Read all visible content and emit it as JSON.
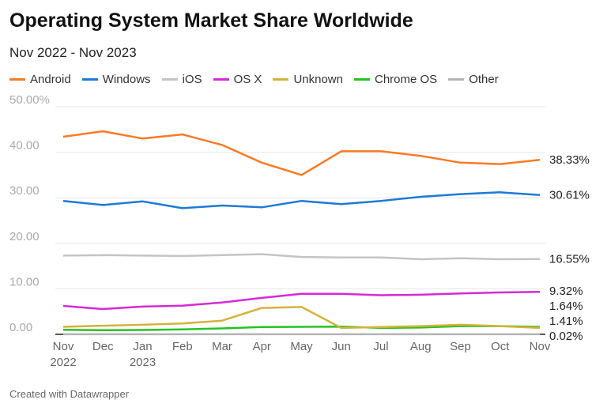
{
  "chart_data": {
    "type": "line",
    "title": "Operating System Market Share Worldwide",
    "subtitle": "Nov 2022 - Nov 2023",
    "categories": [
      "Nov",
      "Dec",
      "Jan",
      "Feb",
      "Mar",
      "Apr",
      "May",
      "Jun",
      "Jul",
      "Aug",
      "Sep",
      "Oct",
      "Nov"
    ],
    "category_years": {
      "0": "2022",
      "2": "2023"
    },
    "ylim": [
      0,
      50
    ],
    "yticks": [
      0,
      10,
      20,
      30,
      40,
      50
    ],
    "ytick_labels": [
      "0.00",
      "10.00",
      "20.00",
      "30.00",
      "40.00",
      "50.00%"
    ],
    "grid": true,
    "legend": "top",
    "series": [
      {
        "name": "Android",
        "color": "#fa7a25",
        "end_label": "38.33%",
        "values": [
          43.4,
          44.6,
          43.0,
          43.9,
          41.6,
          37.7,
          35.0,
          40.2,
          40.2,
          39.2,
          37.7,
          37.4,
          38.33
        ]
      },
      {
        "name": "Windows",
        "color": "#1d7ad6",
        "end_label": "30.61%",
        "values": [
          29.3,
          28.4,
          29.2,
          27.7,
          28.3,
          27.9,
          29.3,
          28.6,
          29.3,
          30.2,
          30.8,
          31.2,
          30.61
        ]
      },
      {
        "name": "iOS",
        "color": "#c4c4c4",
        "end_label": "16.55%",
        "values": [
          17.3,
          17.4,
          17.3,
          17.2,
          17.4,
          17.6,
          17.0,
          16.9,
          16.9,
          16.5,
          16.7,
          16.5,
          16.55
        ]
      },
      {
        "name": "OS X",
        "color": "#d52ad6",
        "end_label": "9.32%",
        "values": [
          6.25,
          5.55,
          6.1,
          6.3,
          7.0,
          8.0,
          8.9,
          8.9,
          8.6,
          8.7,
          9.0,
          9.2,
          9.32
        ]
      },
      {
        "name": "Unknown",
        "color": "#d4b23a",
        "end_label": "1.41%",
        "values": [
          1.65,
          1.9,
          2.1,
          2.4,
          3.0,
          5.8,
          6.0,
          1.4,
          1.6,
          1.8,
          2.1,
          1.8,
          1.41
        ]
      },
      {
        "name": "Chrome OS",
        "color": "#22c421",
        "end_label": "1.64%",
        "values": [
          1.0,
          0.9,
          0.95,
          1.1,
          1.3,
          1.6,
          1.65,
          1.7,
          1.4,
          1.5,
          1.8,
          1.8,
          1.64
        ]
      },
      {
        "name": "Other",
        "color": "#b3b3b3",
        "end_label": "0.02%",
        "values": [
          0.02,
          0.02,
          0.02,
          0.02,
          0.02,
          0.02,
          0.02,
          0.02,
          0.02,
          0.02,
          0.02,
          0.02,
          0.02
        ]
      }
    ]
  },
  "footer": "Created with Datawrapper"
}
